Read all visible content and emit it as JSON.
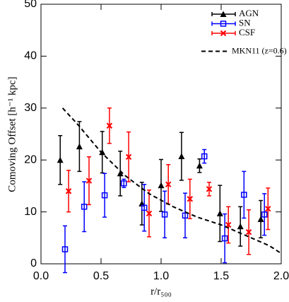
{
  "chart_data": {
    "type": "errorbar",
    "xlabel": "r/r₅₀₀",
    "ylabel": "Comoving Offset [h⁻¹ kpc]",
    "xlim": [
      0,
      2
    ],
    "ylim": [
      0,
      50
    ],
    "xticks": [
      {
        "value": 0,
        "label": "0.0"
      },
      0.5,
      {
        "value": 1,
        "label": "1.0"
      },
      1.5,
      {
        "value": 2,
        "label": "2.0"
      }
    ],
    "yticks": [
      0,
      10,
      20,
      30,
      40,
      50
    ],
    "legend": "upper right",
    "series": [
      {
        "name": "AGN",
        "color": "#000000",
        "marker": "triangle",
        "x": [
          0.16,
          0.32,
          0.51,
          0.66,
          0.84,
          1.0,
          1.17,
          1.32,
          1.49,
          1.66,
          1.83
        ],
        "values": [
          20,
          22.6,
          21.5,
          17.4,
          11.6,
          15.1,
          20.7,
          18.9,
          9.7,
          7.2,
          8.6
        ],
        "errors": [
          4.7,
          4.8,
          4,
          4.3,
          4.1,
          5,
          4.6,
          1.3,
          5.4,
          3.8,
          3.6
        ]
      },
      {
        "name": "SN",
        "color": "#0000ff",
        "marker": "square",
        "x": [
          0.2,
          0.36,
          0.53,
          0.69,
          0.86,
          1.03,
          1.2,
          1.36,
          1.53,
          1.69,
          1.86
        ],
        "values": [
          2.8,
          11,
          13.2,
          15.5,
          10.8,
          9.5,
          9.3,
          20.7,
          4.9,
          13.3,
          9.5
        ],
        "errors": [
          4.5,
          4.8,
          4.2,
          0.8,
          4.5,
          4.5,
          4.3,
          1.3,
          4.7,
          4.5,
          4
        ]
      },
      {
        "name": "CSF",
        "color": "#ff0000",
        "marker": "x",
        "x": [
          0.23,
          0.4,
          0.57,
          0.73,
          0.9,
          1.06,
          1.24,
          1.4,
          1.56,
          1.73,
          1.89
        ],
        "values": [
          14,
          16,
          26.6,
          20.6,
          9.7,
          15.3,
          12.5,
          14.4,
          7.5,
          6.1,
          10.6
        ],
        "errors": [
          4,
          4.6,
          3.4,
          4.8,
          4.5,
          3.8,
          3.8,
          1.3,
          3.5,
          4.3,
          4
        ]
      },
      {
        "name": "MKN11 (z=0.6)",
        "color": "#000000",
        "line": "dashed",
        "x": [
          0.18,
          0.3,
          0.5,
          0.7,
          0.9,
          1.1,
          1.3,
          1.5,
          1.7,
          1.9,
          2.0
        ],
        "values": [
          30,
          27,
          21.5,
          17,
          13.5,
          11,
          9,
          7.5,
          5.5,
          3.5,
          2
        ]
      }
    ]
  }
}
